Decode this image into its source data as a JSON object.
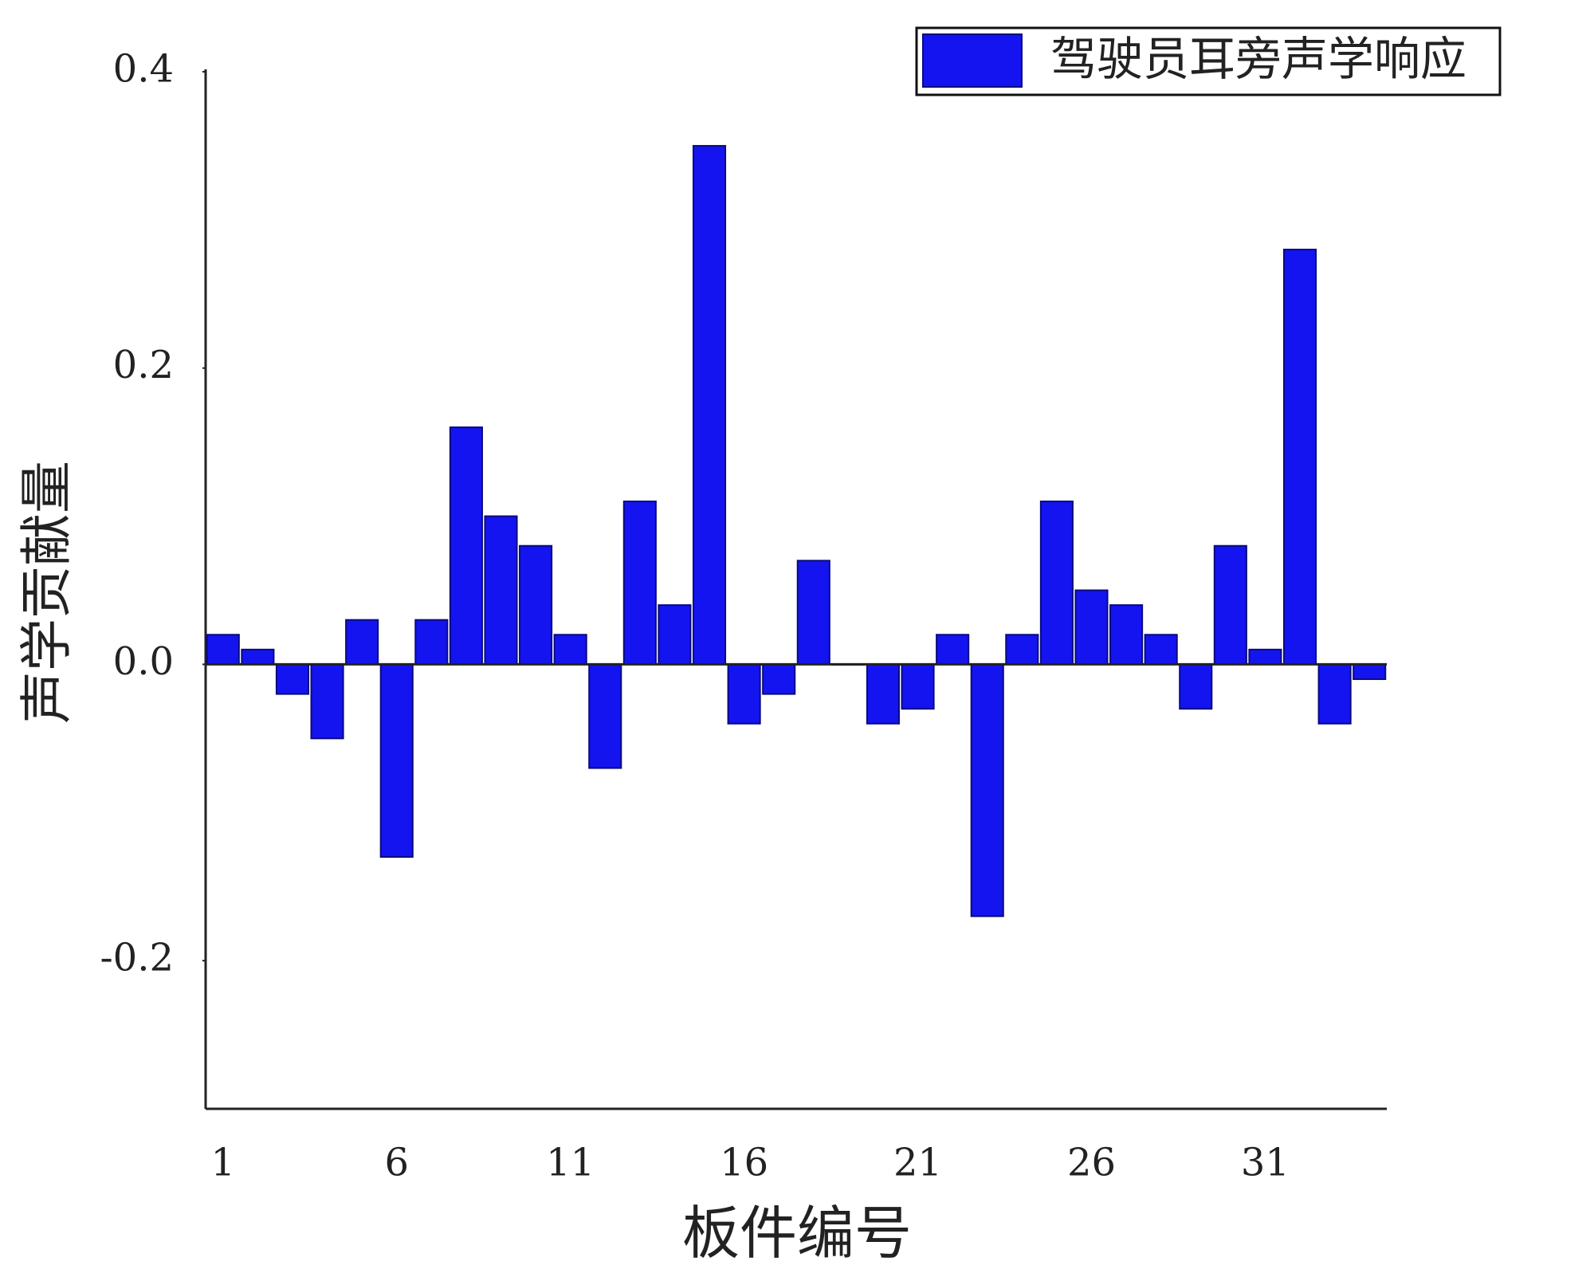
{
  "chart_data": {
    "type": "bar",
    "x_label": "板件编号",
    "y_label": "声学贡献量",
    "categories": [
      "1",
      null,
      null,
      null,
      null,
      "6",
      null,
      null,
      null,
      null,
      "11",
      null,
      null,
      null,
      null,
      "16",
      null,
      null,
      null,
      null,
      "21",
      null,
      null,
      null,
      null,
      "26",
      null,
      null,
      null,
      null,
      "31",
      null,
      null,
      null
    ],
    "series": [
      {
        "name": "驾驶员耳旁声学响应",
        "color": "#1414f0",
        "values": [
          0.02,
          0.01,
          -0.02,
          -0.05,
          0.03,
          -0.13,
          0.03,
          0.16,
          0.1,
          0.08,
          0.02,
          -0.07,
          0.11,
          0.04,
          0.35,
          -0.04,
          -0.02,
          0.07,
          0,
          -0.04,
          -0.03,
          0.02,
          -0.17,
          0.02,
          0.11,
          0.05,
          0.04,
          0.02,
          -0.03,
          0.08,
          0.01,
          0.28,
          -0.04,
          -0.01
        ]
      }
    ],
    "ylim": [
      -0.3,
      0.4
    ],
    "yticks": [
      0.4,
      0.2,
      {
        "value": 0,
        "label": "0.0"
      },
      -0.2
    ],
    "legend": "upper right"
  }
}
